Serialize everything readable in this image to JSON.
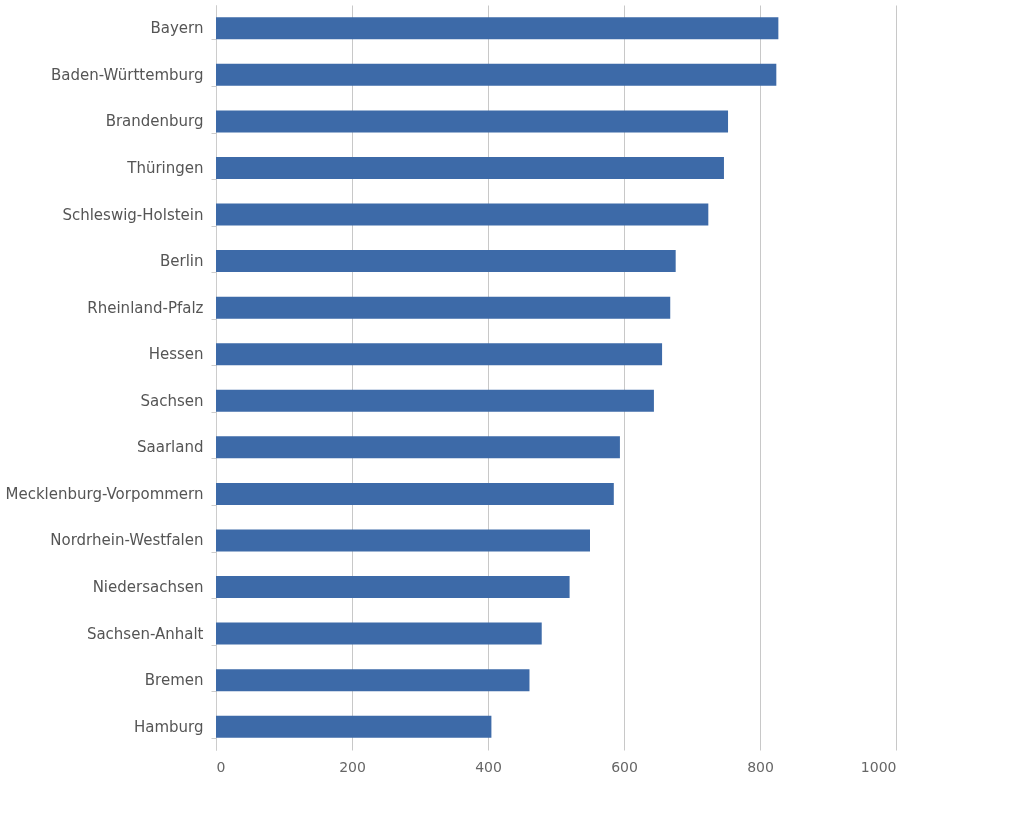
{
  "chart_data": {
    "type": "bar",
    "orientation": "horizontal",
    "categories": [
      "Bayern",
      "Baden-Württemburg",
      "Brandenburg",
      "Thüringen",
      "Schleswig-Holstein",
      "Berlin",
      "Rheinland-Pfalz",
      "Hessen",
      "Sachsen",
      "Saarland",
      "Mecklenburg-Vorpommern",
      "Nordrhein-Westfalen",
      "Niedersachsen",
      "Sachsen-Anhalt",
      "Bremen",
      "Hamburg"
    ],
    "values": [
      827,
      824,
      753,
      747,
      724,
      676,
      668,
      656,
      644,
      594,
      585,
      550,
      520,
      479,
      461,
      405
    ],
    "color": "#3d6aa8",
    "xlim": [
      0,
      1000
    ],
    "xticks": [
      0,
      200,
      400,
      600,
      800,
      1000
    ],
    "grid": "x"
  }
}
